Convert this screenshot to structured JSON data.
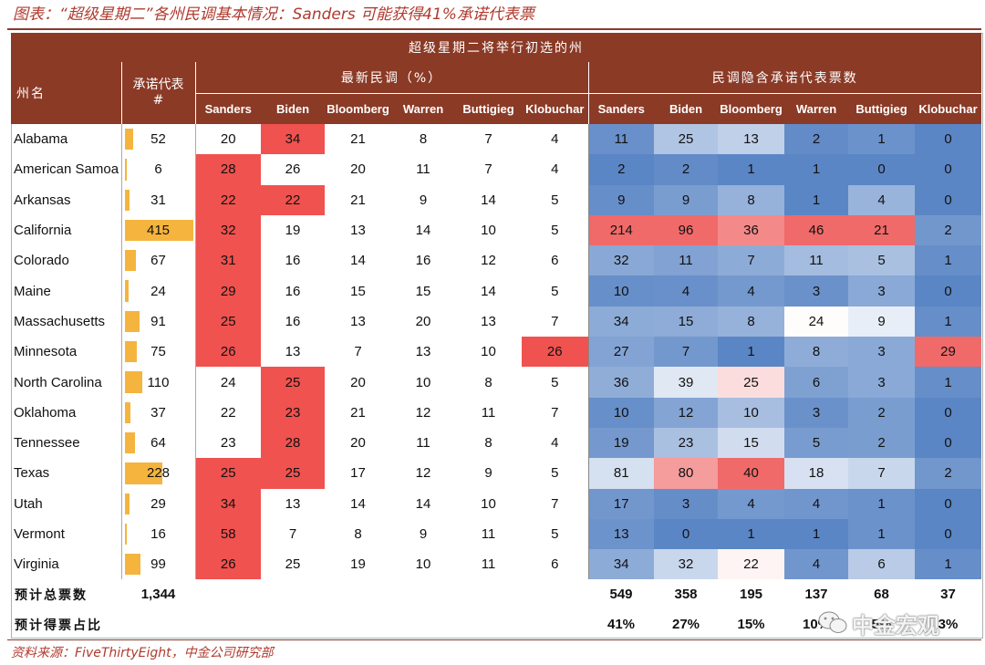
{
  "title": "图表：“超级星期二”各州民调基本情况：Sanders 可能获得41%承诺代表票",
  "source": "资料来源：FiveThirtyEight，中金公司研究部",
  "watermark": "中金宏观",
  "chart_data": {
    "type": "table",
    "header_top": "超级星期二将举行初选的州",
    "state_header": "州名",
    "delegates_header": "承诺代表",
    "delegates_header_sub": "#",
    "poll_group": "最新民调（%）",
    "implied_group": "民调隐含承诺代表票数",
    "candidates": [
      "Sanders",
      "Biden",
      "Bloomberg",
      "Warren",
      "Buttigieg",
      "Klobuchar"
    ],
    "rows": [
      {
        "state": "Alabama",
        "delegates": 52,
        "poll": [
          20,
          34,
          21,
          8,
          7,
          4
        ],
        "implied": [
          11,
          25,
          13,
          2,
          1,
          0
        ]
      },
      {
        "state": "American Samoa",
        "delegates": 6,
        "poll": [
          28,
          26,
          20,
          11,
          7,
          4
        ],
        "implied": [
          2,
          2,
          1,
          1,
          0,
          0
        ]
      },
      {
        "state": "Arkansas",
        "delegates": 31,
        "poll": [
          22,
          22,
          21,
          9,
          14,
          5
        ],
        "implied": [
          9,
          9,
          8,
          1,
          4,
          0
        ]
      },
      {
        "state": "California",
        "delegates": 415,
        "poll": [
          32,
          19,
          13,
          14,
          10,
          5
        ],
        "implied": [
          214,
          96,
          36,
          46,
          21,
          2
        ]
      },
      {
        "state": "Colorado",
        "delegates": 67,
        "poll": [
          31,
          16,
          14,
          16,
          12,
          6
        ],
        "implied": [
          32,
          11,
          7,
          11,
          5,
          1
        ]
      },
      {
        "state": "Maine",
        "delegates": 24,
        "poll": [
          29,
          16,
          15,
          15,
          14,
          5
        ],
        "implied": [
          10,
          4,
          4,
          3,
          3,
          0
        ]
      },
      {
        "state": "Massachusetts",
        "delegates": 91,
        "poll": [
          25,
          16,
          13,
          20,
          13,
          7
        ],
        "implied": [
          34,
          15,
          8,
          24,
          9,
          1
        ]
      },
      {
        "state": "Minnesota",
        "delegates": 75,
        "poll": [
          26,
          13,
          7,
          13,
          10,
          26
        ],
        "implied": [
          27,
          7,
          1,
          8,
          3,
          29
        ]
      },
      {
        "state": "North Carolina",
        "delegates": 110,
        "poll": [
          24,
          25,
          20,
          10,
          8,
          5
        ],
        "implied": [
          36,
          39,
          25,
          6,
          3,
          1
        ]
      },
      {
        "state": "Oklahoma",
        "delegates": 37,
        "poll": [
          22,
          23,
          21,
          12,
          11,
          7
        ],
        "implied": [
          10,
          12,
          10,
          3,
          2,
          0
        ]
      },
      {
        "state": "Tennessee",
        "delegates": 64,
        "poll": [
          23,
          28,
          20,
          11,
          8,
          4
        ],
        "implied": [
          19,
          23,
          15,
          5,
          2,
          0
        ]
      },
      {
        "state": "Texas",
        "delegates": 228,
        "poll": [
          25,
          25,
          17,
          12,
          9,
          5
        ],
        "implied": [
          81,
          80,
          40,
          18,
          7,
          2
        ]
      },
      {
        "state": "Utah",
        "delegates": 29,
        "poll": [
          34,
          13,
          14,
          14,
          10,
          7
        ],
        "implied": [
          17,
          3,
          4,
          4,
          1,
          0
        ]
      },
      {
        "state": "Vermont",
        "delegates": 16,
        "poll": [
          58,
          7,
          8,
          9,
          11,
          5
        ],
        "implied": [
          13,
          0,
          1,
          1,
          1,
          0
        ]
      },
      {
        "state": "Virginia",
        "delegates": 99,
        "poll": [
          26,
          25,
          19,
          10,
          11,
          6
        ],
        "implied": [
          34,
          32,
          22,
          4,
          6,
          1
        ]
      }
    ],
    "total_label": "预计总票数",
    "total_delegates": "1,344",
    "total_implied": [
      "549",
      "358",
      "195",
      "137",
      "68",
      "37"
    ],
    "share_label": "预计得票占比",
    "share_implied": [
      "41%",
      "27%",
      "15%",
      "10%",
      "5%",
      "3%"
    ],
    "colors": {
      "header_bg": "#8b3a26",
      "poll_highlight": "#f0524f",
      "delegate_bar": "#f5b43d",
      "heat_high": "#f06a6a",
      "heat_mid": "#ffffff",
      "heat_low": "#5b86c5"
    }
  }
}
